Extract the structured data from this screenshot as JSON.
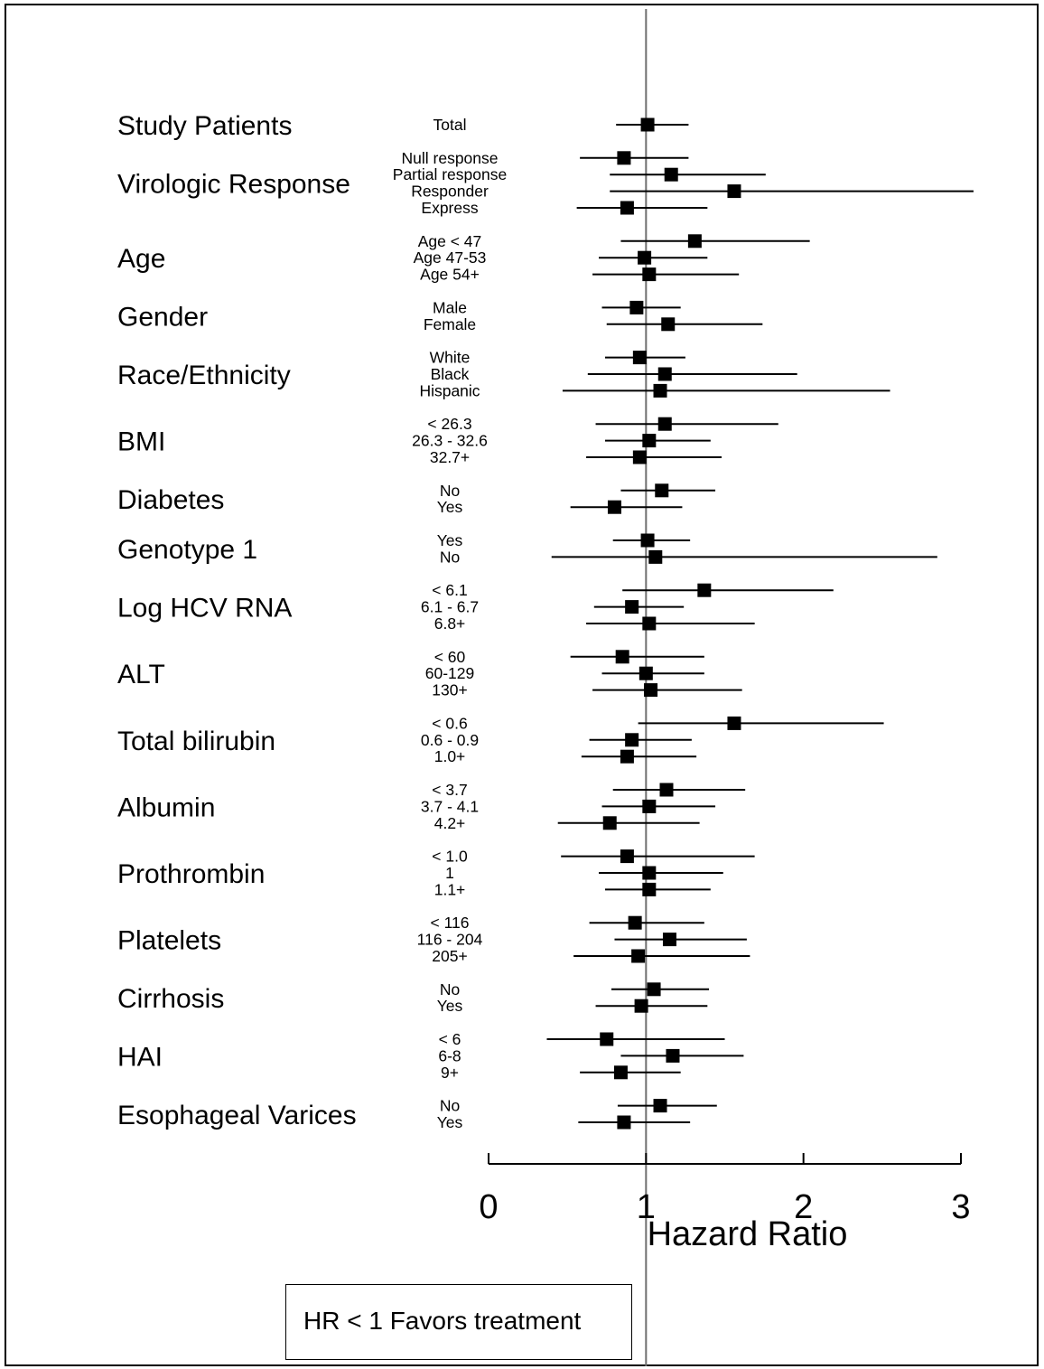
{
  "chart_data": {
    "type": "forest",
    "xlabel": "Hazard Ratio",
    "xlim": [
      0,
      3
    ],
    "xticks": [
      0,
      1,
      2,
      3
    ],
    "reference_line": 1,
    "note": "HR < 1 Favors treatment",
    "groups": [
      {
        "label": "Study Patients",
        "rows": [
          {
            "label": "Total",
            "hr": 1.01,
            "lo": 0.81,
            "hi": 1.27
          }
        ]
      },
      {
        "label": "Virologic Response",
        "rows": [
          {
            "label": "Null response",
            "hr": 0.86,
            "lo": 0.58,
            "hi": 1.27
          },
          {
            "label": "Partial response",
            "hr": 1.16,
            "lo": 0.77,
            "hi": 1.76
          },
          {
            "label": "Responder",
            "hr": 1.56,
            "lo": 0.77,
            "hi": 3.08
          },
          {
            "label": "Express",
            "hr": 0.88,
            "lo": 0.56,
            "hi": 1.39
          }
        ]
      },
      {
        "label": "Age",
        "rows": [
          {
            "label": "Age < 47",
            "hr": 1.31,
            "lo": 0.84,
            "hi": 2.04
          },
          {
            "label": "Age 47-53",
            "hr": 0.99,
            "lo": 0.7,
            "hi": 1.39
          },
          {
            "label": "Age 54+",
            "hr": 1.02,
            "lo": 0.66,
            "hi": 1.59
          }
        ]
      },
      {
        "label": "Gender",
        "rows": [
          {
            "label": "Male",
            "hr": 0.94,
            "lo": 0.72,
            "hi": 1.22
          },
          {
            "label": "Female",
            "hr": 1.14,
            "lo": 0.75,
            "hi": 1.74
          }
        ]
      },
      {
        "label": "Race/Ethnicity",
        "rows": [
          {
            "label": "White",
            "hr": 0.96,
            "lo": 0.74,
            "hi": 1.25
          },
          {
            "label": "Black",
            "hr": 1.12,
            "lo": 0.63,
            "hi": 1.96
          },
          {
            "label": "Hispanic",
            "hr": 1.09,
            "lo": 0.47,
            "hi": 2.55
          }
        ]
      },
      {
        "label": "BMI",
        "rows": [
          {
            "label": "< 26.3",
            "hr": 1.12,
            "lo": 0.68,
            "hi": 1.84
          },
          {
            "label": "26.3 - 32.6",
            "hr": 1.02,
            "lo": 0.74,
            "hi": 1.41
          },
          {
            "label": "32.7+",
            "hr": 0.96,
            "lo": 0.62,
            "hi": 1.48
          }
        ]
      },
      {
        "label": "Diabetes",
        "rows": [
          {
            "label": "No",
            "hr": 1.1,
            "lo": 0.84,
            "hi": 1.44
          },
          {
            "label": "Yes",
            "hr": 0.8,
            "lo": 0.52,
            "hi": 1.23
          }
        ]
      },
      {
        "label": "Genotype 1",
        "rows": [
          {
            "label": "Yes",
            "hr": 1.01,
            "lo": 0.79,
            "hi": 1.28
          },
          {
            "label": "No",
            "hr": 1.06,
            "lo": 0.4,
            "hi": 2.85
          }
        ]
      },
      {
        "label": "Log HCV RNA",
        "rows": [
          {
            "label": "< 6.1",
            "hr": 1.37,
            "lo": 0.85,
            "hi": 2.19
          },
          {
            "label": "6.1 - 6.7",
            "hr": 0.91,
            "lo": 0.67,
            "hi": 1.24
          },
          {
            "label": "6.8+",
            "hr": 1.02,
            "lo": 0.62,
            "hi": 1.69
          }
        ]
      },
      {
        "label": "ALT",
        "rows": [
          {
            "label": "< 60",
            "hr": 0.85,
            "lo": 0.52,
            "hi": 1.37
          },
          {
            "label": "60-129",
            "hr": 1.0,
            "lo": 0.72,
            "hi": 1.37
          },
          {
            "label": "130+",
            "hr": 1.03,
            "lo": 0.66,
            "hi": 1.61
          }
        ]
      },
      {
        "label": "Total bilirubin",
        "rows": [
          {
            "label": "< 0.6",
            "hr": 1.56,
            "lo": 0.95,
            "hi": 2.51
          },
          {
            "label": "0.6 - 0.9",
            "hr": 0.91,
            "lo": 0.64,
            "hi": 1.29
          },
          {
            "label": "1.0+",
            "hr": 0.88,
            "lo": 0.59,
            "hi": 1.32
          }
        ]
      },
      {
        "label": "Albumin",
        "rows": [
          {
            "label": "< 3.7",
            "hr": 1.13,
            "lo": 0.79,
            "hi": 1.63
          },
          {
            "label": "3.7 - 4.1",
            "hr": 1.02,
            "lo": 0.72,
            "hi": 1.44
          },
          {
            "label": "4.2+",
            "hr": 0.77,
            "lo": 0.44,
            "hi": 1.34
          }
        ]
      },
      {
        "label": "Prothrombin",
        "rows": [
          {
            "label": "< 1.0",
            "hr": 0.88,
            "lo": 0.46,
            "hi": 1.69
          },
          {
            "label": "1",
            "hr": 1.02,
            "lo": 0.7,
            "hi": 1.49
          },
          {
            "label": "1.1+",
            "hr": 1.02,
            "lo": 0.74,
            "hi": 1.41
          }
        ]
      },
      {
        "label": "Platelets",
        "rows": [
          {
            "label": "< 116",
            "hr": 0.93,
            "lo": 0.64,
            "hi": 1.37
          },
          {
            "label": "116 - 204",
            "hr": 1.15,
            "lo": 0.8,
            "hi": 1.64
          },
          {
            "label": "205+",
            "hr": 0.95,
            "lo": 0.54,
            "hi": 1.66
          }
        ]
      },
      {
        "label": "Cirrhosis",
        "rows": [
          {
            "label": "No",
            "hr": 1.05,
            "lo": 0.78,
            "hi": 1.4
          },
          {
            "label": "Yes",
            "hr": 0.97,
            "lo": 0.68,
            "hi": 1.39
          }
        ]
      },
      {
        "label": "HAI",
        "rows": [
          {
            "label": "< 6",
            "hr": 0.75,
            "lo": 0.37,
            "hi": 1.5
          },
          {
            "label": "6-8",
            "hr": 1.17,
            "lo": 0.84,
            "hi": 1.62
          },
          {
            "label": "9+",
            "hr": 0.84,
            "lo": 0.58,
            "hi": 1.22
          }
        ]
      },
      {
        "label": "Esophageal Varices",
        "rows": [
          {
            "label": "No",
            "hr": 1.09,
            "lo": 0.82,
            "hi": 1.45
          },
          {
            "label": "Yes",
            "hr": 0.86,
            "lo": 0.57,
            "hi": 1.28
          }
        ]
      }
    ]
  }
}
